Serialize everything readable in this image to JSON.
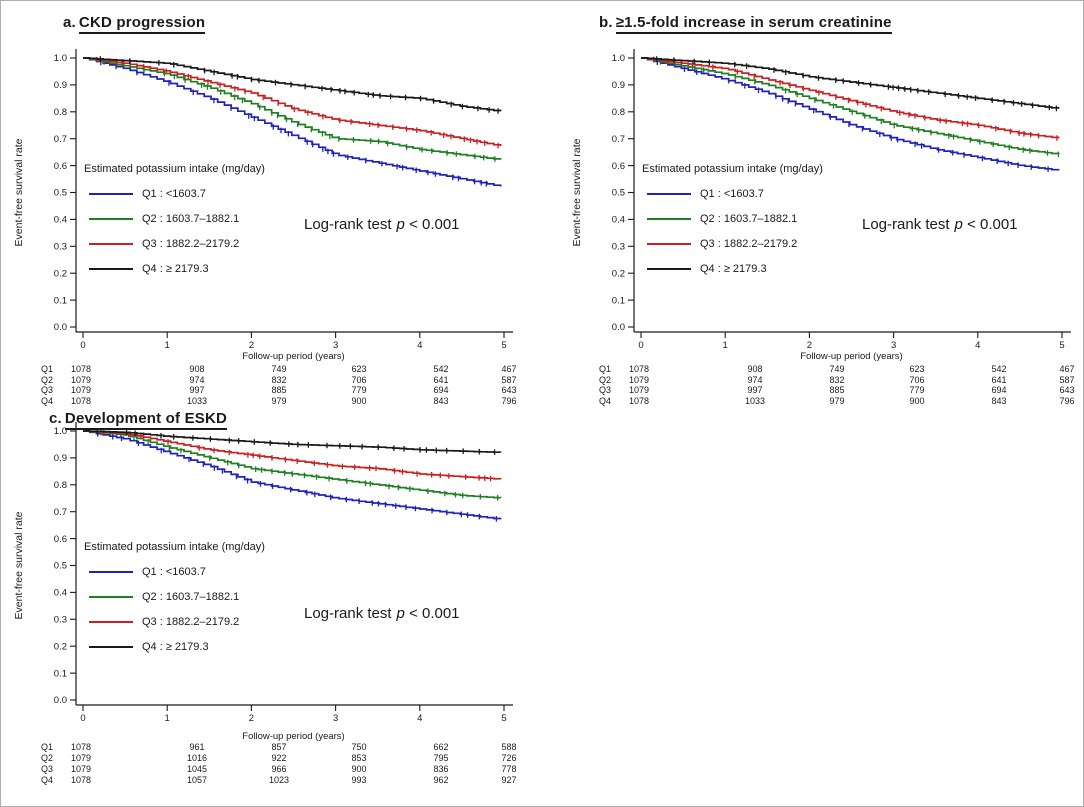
{
  "axes": {
    "ylabel": "Event-free survival rate",
    "xlabel": "Follow-up period (years)",
    "yticks": [
      "1.0",
      "0.9",
      "0.8",
      "0.7",
      "0.6",
      "0.5",
      "0.4",
      "0.3",
      "0.2",
      "0.1",
      "0.0"
    ],
    "xticks": [
      "0",
      "1",
      "2",
      "3",
      "4",
      "5"
    ]
  },
  "legend": {
    "header": "Estimated potassium intake (mg/day)",
    "entries": [
      {
        "label": "Q1",
        "separator": ":",
        "range": "<1603.7",
        "color": "#2020bf"
      },
      {
        "label": "Q2",
        "separator": ":",
        "range": "1603.7–1882.1",
        "color": "#1e8020"
      },
      {
        "label": "Q3",
        "separator": ":",
        "range": "1882.2–2179.2",
        "color": "#cc2020"
      },
      {
        "label": "Q4",
        "separator": ":",
        "range": "≥ 2179.3",
        "color": "#1a1a1a"
      }
    ]
  },
  "annotation": {
    "prefix": "Log-rank test",
    "p": "p",
    "value": "< 0.001"
  },
  "panels": [
    {
      "id": "a",
      "prefix": "a.",
      "title": "CKD progression"
    },
    {
      "id": "b",
      "prefix": "b.",
      "title": "≥1.5-fold increase in serum creatinine"
    },
    {
      "id": "c",
      "prefix": "c.",
      "title": "Development of ESKD"
    }
  ],
  "chart_data": [
    {
      "type": "line",
      "variant": "kaplan_meier_step",
      "panel": "a",
      "title": "CKD progression",
      "xlabel": "Follow-up period (years)",
      "ylabel": "Event-free survival rate",
      "xlim": [
        0,
        5
      ],
      "ylim": [
        0.0,
        1.0
      ],
      "grid": false,
      "legend_position": "inside-left",
      "annotation": "Log-rank test p < 0.001",
      "x": [
        0,
        0.5,
        1,
        1.5,
        2,
        2.5,
        3,
        3.5,
        4,
        4.5,
        5
      ],
      "series": [
        {
          "name": "Q1",
          "color": "#2020bf",
          "values": [
            1.0,
            0.96,
            0.91,
            0.85,
            0.78,
            0.71,
            0.64,
            0.61,
            0.58,
            0.55,
            0.52
          ]
        },
        {
          "name": "Q2",
          "color": "#1e8020",
          "values": [
            1.0,
            0.97,
            0.94,
            0.89,
            0.83,
            0.76,
            0.7,
            0.69,
            0.66,
            0.64,
            0.62
          ]
        },
        {
          "name": "Q3",
          "color": "#cc2020",
          "values": [
            1.0,
            0.98,
            0.95,
            0.91,
            0.87,
            0.81,
            0.77,
            0.75,
            0.73,
            0.7,
            0.67
          ]
        },
        {
          "name": "Q4",
          "color": "#1a1a1a",
          "values": [
            1.0,
            0.99,
            0.98,
            0.95,
            0.92,
            0.9,
            0.88,
            0.86,
            0.85,
            0.82,
            0.8
          ]
        }
      ],
      "numbers_at_risk": {
        "x": [
          0,
          1,
          2,
          3,
          4,
          5
        ],
        "rows": [
          {
            "name": "Q1",
            "counts": [
              "1078",
              "908",
              "749",
              "623",
              "542",
              "467"
            ]
          },
          {
            "name": "Q2",
            "counts": [
              "1079",
              "974",
              "832",
              "706",
              "641",
              "587"
            ]
          },
          {
            "name": "Q3",
            "counts": [
              "1079",
              "997",
              "885",
              "779",
              "694",
              "643"
            ]
          },
          {
            "name": "Q4",
            "counts": [
              "1078",
              "1033",
              "979",
              "900",
              "843",
              "796"
            ]
          }
        ]
      }
    },
    {
      "type": "line",
      "variant": "kaplan_meier_step",
      "panel": "b",
      "title": "≥1.5-fold increase in serum creatinine",
      "xlabel": "Follow-up period (years)",
      "ylabel": "Event-free survival rate",
      "xlim": [
        0,
        5
      ],
      "ylim": [
        0.0,
        1.0
      ],
      "grid": false,
      "legend_position": "inside-left",
      "annotation": "Log-rank test p < 0.001",
      "x": [
        0,
        0.5,
        1,
        1.5,
        2,
        2.5,
        3,
        3.5,
        4,
        4.5,
        5
      ],
      "series": [
        {
          "name": "Q1",
          "color": "#2020bf",
          "values": [
            1.0,
            0.96,
            0.92,
            0.87,
            0.81,
            0.75,
            0.7,
            0.66,
            0.63,
            0.6,
            0.58
          ]
        },
        {
          "name": "Q2",
          "color": "#1e8020",
          "values": [
            1.0,
            0.97,
            0.94,
            0.9,
            0.85,
            0.8,
            0.75,
            0.72,
            0.69,
            0.66,
            0.64
          ]
        },
        {
          "name": "Q3",
          "color": "#cc2020",
          "values": [
            1.0,
            0.98,
            0.96,
            0.92,
            0.88,
            0.84,
            0.8,
            0.77,
            0.75,
            0.72,
            0.7
          ]
        },
        {
          "name": "Q4",
          "color": "#1a1a1a",
          "values": [
            1.0,
            0.99,
            0.98,
            0.96,
            0.93,
            0.91,
            0.89,
            0.87,
            0.85,
            0.83,
            0.81
          ]
        }
      ],
      "numbers_at_risk": {
        "x": [
          0,
          1,
          2,
          3,
          4,
          5
        ],
        "rows": [
          {
            "name": "Q1",
            "counts": [
              "1078",
              "908",
              "749",
              "623",
              "542",
              "467"
            ]
          },
          {
            "name": "Q2",
            "counts": [
              "1079",
              "974",
              "832",
              "706",
              "641",
              "587"
            ]
          },
          {
            "name": "Q3",
            "counts": [
              "1079",
              "997",
              "885",
              "779",
              "694",
              "643"
            ]
          },
          {
            "name": "Q4",
            "counts": [
              "1078",
              "1033",
              "979",
              "900",
              "843",
              "796"
            ]
          }
        ]
      }
    },
    {
      "type": "line",
      "variant": "kaplan_meier_step",
      "panel": "c",
      "title": "Development of ESKD",
      "xlabel": "Follow-up period (years)",
      "ylabel": "Event-free survival rate",
      "xlim": [
        0,
        5
      ],
      "ylim": [
        0.0,
        1.0
      ],
      "grid": false,
      "legend_position": "inside-left",
      "annotation": "Log-rank test p < 0.001",
      "x": [
        0,
        0.5,
        1,
        1.5,
        2,
        2.5,
        3,
        3.5,
        4,
        4.5,
        5
      ],
      "series": [
        {
          "name": "Q1",
          "color": "#2020bf",
          "values": [
            1.0,
            0.97,
            0.92,
            0.87,
            0.81,
            0.78,
            0.75,
            0.73,
            0.71,
            0.69,
            0.67
          ]
        },
        {
          "name": "Q2",
          "color": "#1e8020",
          "values": [
            1.0,
            0.985,
            0.94,
            0.9,
            0.86,
            0.84,
            0.82,
            0.8,
            0.78,
            0.76,
            0.75
          ]
        },
        {
          "name": "Q3",
          "color": "#cc2020",
          "values": [
            1.0,
            0.99,
            0.96,
            0.93,
            0.91,
            0.89,
            0.87,
            0.86,
            0.84,
            0.83,
            0.82
          ]
        },
        {
          "name": "Q4",
          "color": "#1a1a1a",
          "values": [
            1.0,
            0.995,
            0.98,
            0.97,
            0.96,
            0.95,
            0.945,
            0.94,
            0.93,
            0.925,
            0.92
          ]
        }
      ],
      "numbers_at_risk": {
        "x": [
          0,
          1,
          2,
          3,
          4,
          5
        ],
        "rows": [
          {
            "name": "Q1",
            "counts": [
              "1078",
              "961",
              "857",
              "750",
              "662",
              "588"
            ]
          },
          {
            "name": "Q2",
            "counts": [
              "1079",
              "1016",
              "922",
              "853",
              "795",
              "726"
            ]
          },
          {
            "name": "Q3",
            "counts": [
              "1079",
              "1045",
              "966",
              "900",
              "836",
              "778"
            ]
          },
          {
            "name": "Q4",
            "counts": [
              "1078",
              "1057",
              "1023",
              "993",
              "962",
              "927"
            ]
          }
        ]
      }
    }
  ]
}
